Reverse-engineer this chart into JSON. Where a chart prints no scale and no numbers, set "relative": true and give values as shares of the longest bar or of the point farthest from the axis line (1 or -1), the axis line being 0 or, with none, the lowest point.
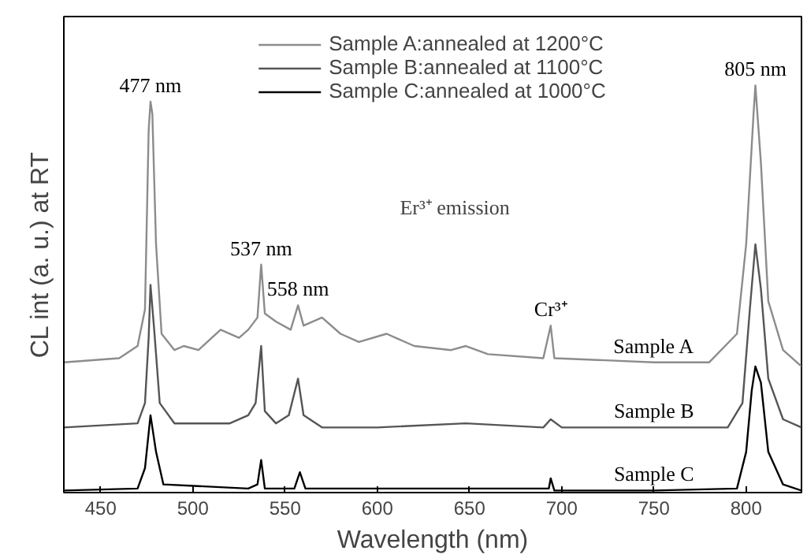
{
  "chart_data": {
    "type": "line",
    "relative": true,
    "xlabel": "Wavelength (nm)",
    "ylabel": "CL int (a. u.) at RT",
    "xlim": [
      430,
      830
    ],
    "xticks": [
      450,
      500,
      550,
      600,
      650,
      700,
      750,
      800
    ],
    "grid": false,
    "legend": "top",
    "marker": "none",
    "line_style": "solid",
    "series": [
      {
        "name": "Sample A:annealed at 1200°C",
        "color": "#8c8c8c",
        "x": [
          430,
          460,
          470,
          474,
          476,
          477,
          478,
          480,
          483,
          490,
          495,
          503,
          515,
          525,
          530,
          535,
          537,
          539,
          545,
          553,
          557,
          560,
          570,
          580,
          590,
          605,
          620,
          640,
          648,
          660,
          690,
          694,
          696,
          750,
          780,
          795,
          800,
          804,
          805,
          808,
          812,
          820,
          830
        ],
        "values": [
          0.32,
          0.33,
          0.36,
          0.45,
          0.89,
          0.96,
          0.93,
          0.61,
          0.39,
          0.35,
          0.36,
          0.35,
          0.4,
          0.38,
          0.4,
          0.43,
          0.56,
          0.44,
          0.42,
          0.4,
          0.46,
          0.41,
          0.43,
          0.39,
          0.37,
          0.39,
          0.36,
          0.35,
          0.36,
          0.34,
          0.33,
          0.41,
          0.33,
          0.32,
          0.32,
          0.39,
          0.61,
          0.93,
          1.0,
          0.81,
          0.47,
          0.35,
          0.31
        ]
      },
      {
        "name": "Sample B:annealed at 1100°C",
        "color": "#555555",
        "x": [
          430,
          470,
          474,
          476,
          477,
          479,
          482,
          490,
          520,
          530,
          534,
          537,
          539,
          545,
          552,
          557,
          560,
          570,
          600,
          648,
          690,
          694,
          700,
          750,
          790,
          798,
          802,
          805,
          808,
          812,
          820,
          830
        ],
        "values": [
          0.16,
          0.17,
          0.22,
          0.38,
          0.51,
          0.4,
          0.22,
          0.17,
          0.17,
          0.19,
          0.22,
          0.36,
          0.2,
          0.17,
          0.19,
          0.28,
          0.19,
          0.16,
          0.16,
          0.17,
          0.16,
          0.18,
          0.16,
          0.16,
          0.16,
          0.22,
          0.45,
          0.61,
          0.5,
          0.28,
          0.18,
          0.16
        ]
      },
      {
        "name": "Sample C:annealed at 1000°C",
        "color": "#000000",
        "x": [
          430,
          470,
          474,
          477,
          480,
          484,
          530,
          535,
          537,
          539,
          555,
          558,
          561,
          693,
          694,
          696,
          750,
          795,
          800,
          803,
          805,
          808,
          812,
          820,
          830
        ],
        "values": [
          0.005,
          0.01,
          0.06,
          0.19,
          0.1,
          0.02,
          0.01,
          0.02,
          0.08,
          0.01,
          0.01,
          0.05,
          0.01,
          0.01,
          0.035,
          0.005,
          0.005,
          0.01,
          0.1,
          0.25,
          0.31,
          0.27,
          0.1,
          0.02,
          0.005
        ]
      }
    ],
    "annotations": [
      {
        "text": "477 nm",
        "x": 477,
        "y": 0.96
      },
      {
        "text": "537 nm",
        "x": 537,
        "y": 0.56
      },
      {
        "text": "558 nm",
        "x": 557,
        "y": 0.46
      },
      {
        "text": "805 nm",
        "x": 805,
        "y": 1.0
      },
      "Er³⁺ emission",
      {
        "text": "Cr³⁺",
        "x": 694,
        "y": 0.41
      },
      {
        "text": "Sample A",
        "x": 750,
        "y": 0.32
      },
      {
        "text": "Sample B",
        "x": 750,
        "y": 0.16
      },
      {
        "text": "Sample C",
        "x": 750,
        "y": 0.005
      }
    ]
  }
}
